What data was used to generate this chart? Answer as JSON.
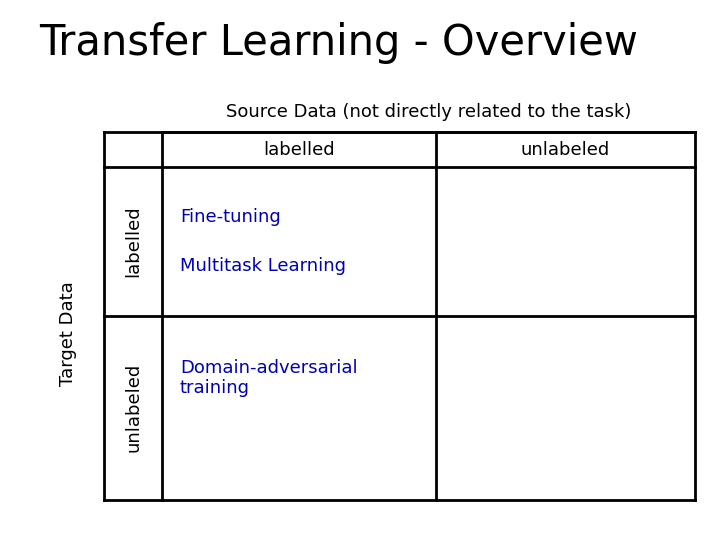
{
  "title": "Transfer Learning - Overview",
  "title_fontsize": 30,
  "title_color": "#000000",
  "background_color": "#ffffff",
  "source_data_label": "Source Data (not directly related to the task)",
  "source_labelled": "labelled",
  "source_unlabeled": "unlabeled",
  "target_data_label": "Target Data",
  "target_labelled": "labelled",
  "target_unlabeled": "unlabeled",
  "cell_top_left": [
    "Fine-tuning",
    "Multitask Learning"
  ],
  "cell_bottom_left": "Domain-adversarial\ntraining",
  "cell_text_color": "#0000bb",
  "cell_text_fontsize": 13,
  "header_fontsize": 13,
  "line_color": "#000000",
  "line_width": 2.0,
  "fig_width": 7.2,
  "fig_height": 5.4,
  "dpi": 100
}
